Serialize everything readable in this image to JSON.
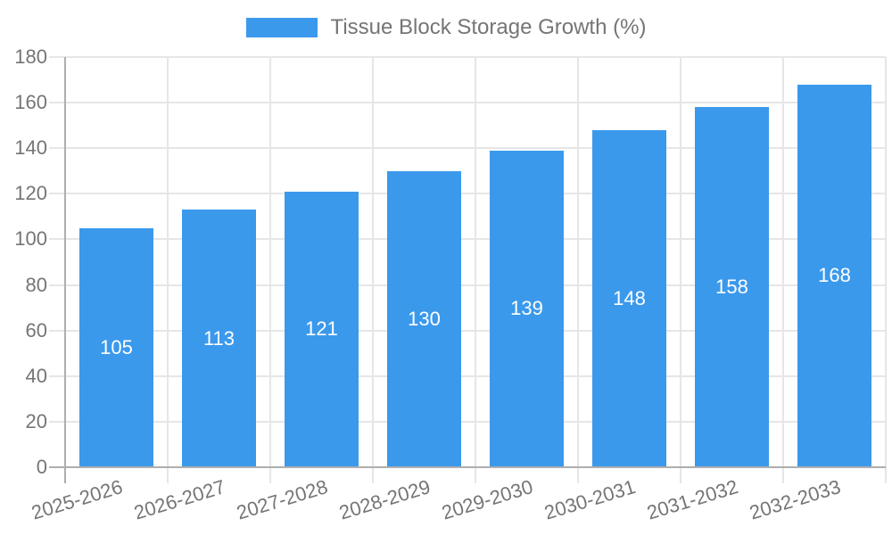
{
  "chart_data": {
    "type": "bar",
    "title": "Tissue Block Storage Growth (%)",
    "legend_label": "Tissue Block Storage Growth (%)",
    "categories": [
      "2025-2026",
      "2026-2027",
      "2027-2028",
      "2028-2029",
      "2029-2030",
      "2030-2031",
      "2031-2032",
      "2032-2033"
    ],
    "values": [
      105,
      113,
      121,
      130,
      139,
      148,
      158,
      168
    ],
    "xlabel": "",
    "ylabel": "",
    "ylim": [
      0,
      180
    ],
    "ytick_step": 20,
    "ytick_labels": [
      "0",
      "20",
      "40",
      "60",
      "80",
      "100",
      "120",
      "140",
      "160",
      "180"
    ],
    "grid": true,
    "legend_position": "top",
    "colors": {
      "bar": "#3b99ec",
      "value_label": "#ffffff",
      "axis_text": "#757575",
      "grid_line": "#e6e6e6",
      "axis_line": "#aeaeae"
    }
  }
}
